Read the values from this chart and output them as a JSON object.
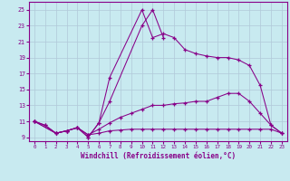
{
  "xlabel": "Windchill (Refroidissement éolien,°C)",
  "bg_color": "#c8eaf0",
  "grid_color": "#b0c8d8",
  "line_color": "#880088",
  "xlim": [
    -0.5,
    23.5
  ],
  "ylim": [
    8.5,
    26.0
  ],
  "xticks": [
    0,
    1,
    2,
    3,
    4,
    5,
    6,
    7,
    8,
    9,
    10,
    11,
    12,
    13,
    14,
    15,
    16,
    17,
    18,
    19,
    20,
    21,
    22,
    23
  ],
  "yticks": [
    9,
    11,
    13,
    15,
    17,
    19,
    21,
    23,
    25
  ],
  "line1_x": [
    0,
    1,
    2,
    3,
    4,
    5,
    6,
    7,
    10,
    11,
    12,
    13,
    14,
    15,
    16,
    17,
    18,
    19,
    20,
    21,
    22,
    23
  ],
  "line1_y": [
    11.0,
    10.5,
    9.5,
    9.8,
    10.2,
    9.0,
    10.8,
    16.5,
    25.0,
    21.5,
    22.0,
    21.5,
    20.0,
    19.5,
    19.2,
    19.0,
    19.0,
    18.7,
    18.0,
    15.5,
    10.5,
    9.5
  ],
  "line2_x": [
    0,
    1,
    2,
    3,
    4,
    5,
    6,
    7,
    10,
    11,
    12
  ],
  "line2_y": [
    11.0,
    10.5,
    9.5,
    9.8,
    10.2,
    9.0,
    10.8,
    13.5,
    23.0,
    25.0,
    21.5
  ],
  "line3_x": [
    0,
    2,
    3,
    4,
    5,
    6,
    7,
    8,
    9,
    10,
    11,
    12,
    13,
    14,
    15,
    16,
    17,
    18,
    19,
    20,
    21,
    22,
    23
  ],
  "line3_y": [
    11.0,
    9.5,
    9.8,
    10.2,
    9.3,
    10.0,
    10.8,
    11.5,
    12.0,
    12.5,
    13.0,
    13.0,
    13.2,
    13.3,
    13.5,
    13.5,
    14.0,
    14.5,
    14.5,
    13.5,
    12.0,
    10.5,
    9.5
  ],
  "line4_x": [
    0,
    2,
    3,
    4,
    5,
    6,
    7,
    8,
    9,
    10,
    11,
    12,
    13,
    14,
    15,
    16,
    17,
    18,
    19,
    20,
    21,
    22,
    23
  ],
  "line4_y": [
    11.0,
    9.5,
    9.8,
    10.2,
    9.3,
    9.5,
    9.8,
    9.9,
    10.0,
    10.0,
    10.0,
    10.0,
    10.0,
    10.0,
    10.0,
    10.0,
    10.0,
    10.0,
    10.0,
    10.0,
    10.0,
    10.0,
    9.5
  ]
}
